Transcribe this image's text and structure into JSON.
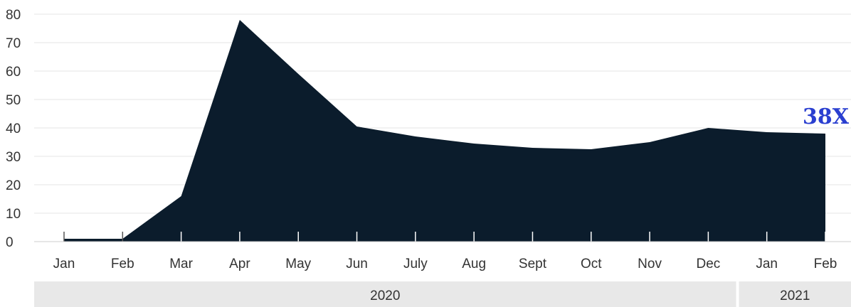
{
  "chart_data": {
    "type": "area",
    "categories": [
      "Jan",
      "Feb",
      "Mar",
      "Apr",
      "May",
      "Jun",
      "July",
      "Aug",
      "Sept",
      "Oct",
      "Nov",
      "Dec",
      "Jan",
      "Feb"
    ],
    "values": [
      1,
      1,
      16,
      78,
      59,
      40.5,
      37,
      34.5,
      33,
      32.5,
      35,
      40,
      38.5,
      38
    ],
    "ylim": [
      0,
      80
    ],
    "yticks": [
      "0",
      "10",
      "20",
      "30",
      "40",
      "50",
      "60",
      "70",
      "80"
    ],
    "grid": true,
    "annotation": "38X",
    "year_groups": [
      {
        "label": "2020",
        "start_index": 0,
        "end_index": 11
      },
      {
        "label": "2021",
        "start_index": 12,
        "end_index": 13
      }
    ],
    "colors": {
      "area": "#0b1c2c",
      "annotation": "#2a3fd0",
      "band": "#e8e8e8"
    }
  }
}
